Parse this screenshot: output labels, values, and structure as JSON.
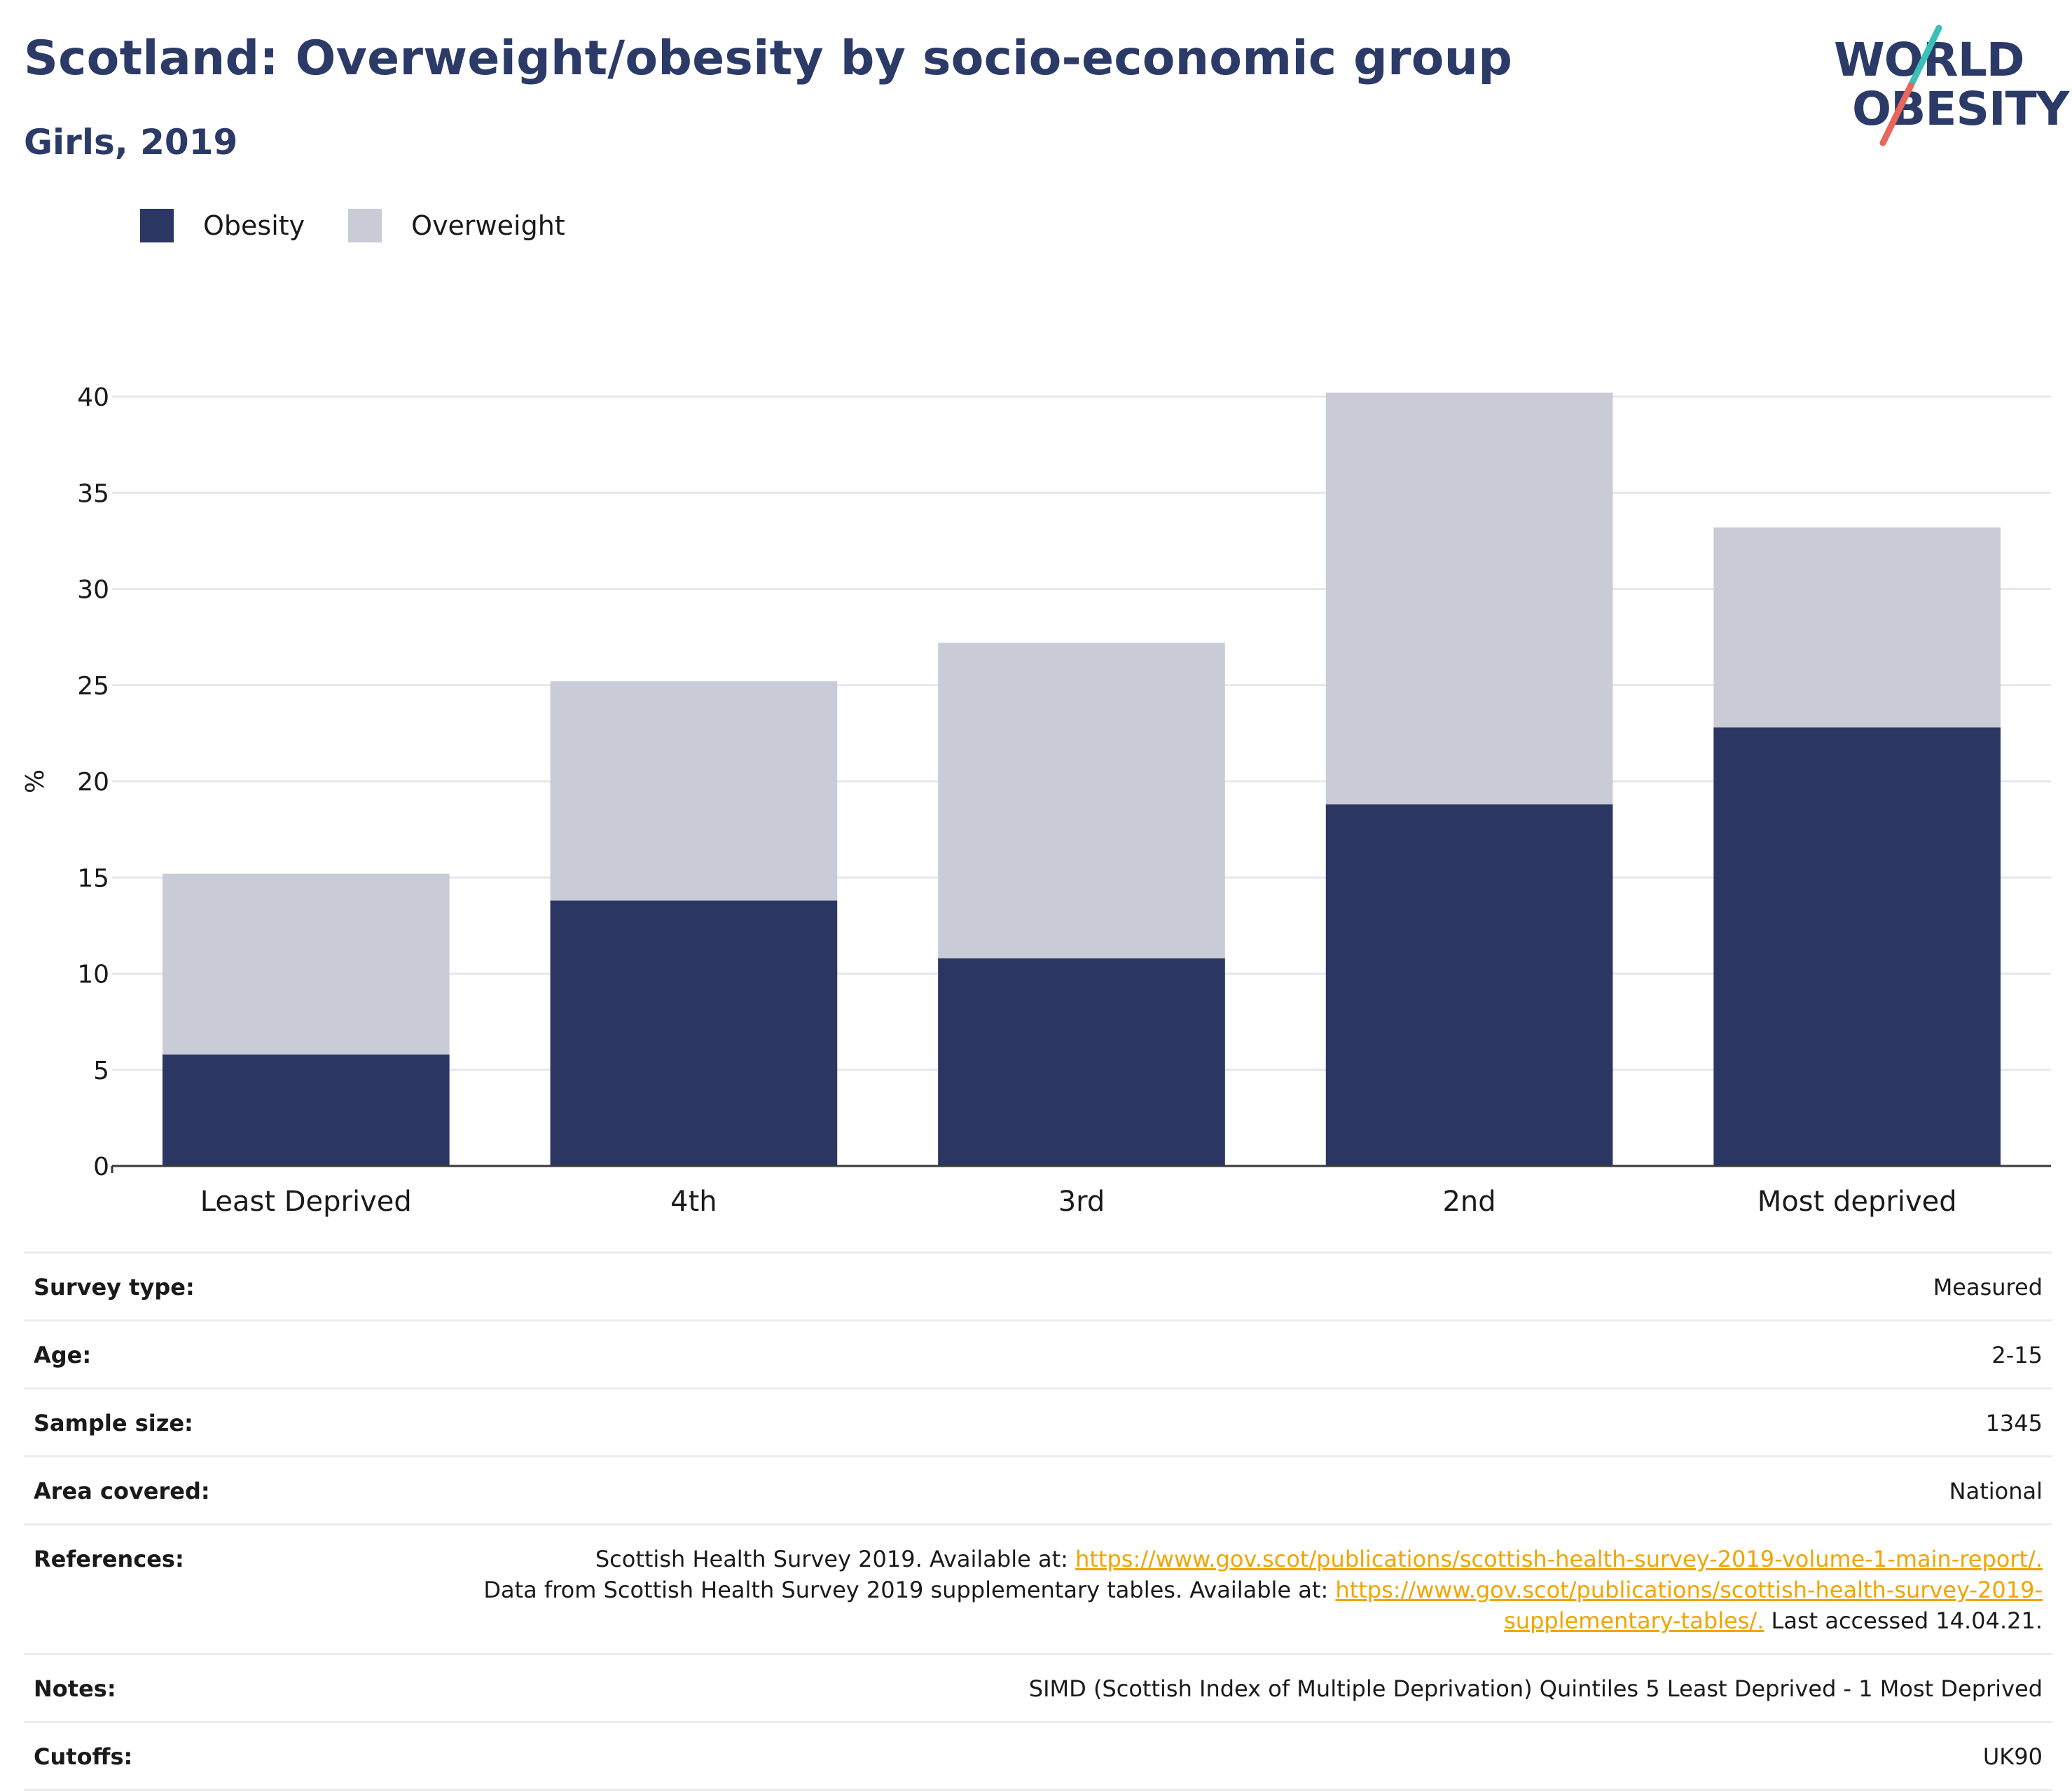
{
  "header": {
    "title": "Scotland: Overweight/obesity by socio-economic group",
    "subtitle": "Girls, 2019"
  },
  "logo": {
    "line1": "WORLD",
    "line2": "OBESITY"
  },
  "colors": {
    "obesity": "#2b3663",
    "overweight": "#c9cbd7",
    "accent_teal": "#3cbfb6",
    "accent_coral": "#e8665a",
    "link": "#f0a500"
  },
  "chart_data": {
    "type": "bar",
    "stacked": true,
    "categories": [
      "Least Deprived",
      "4th",
      "3rd",
      "2nd",
      "Most deprived"
    ],
    "series": [
      {
        "name": "Obesity",
        "values": [
          5.8,
          13.8,
          10.8,
          18.8,
          22.8
        ]
      },
      {
        "name": "Overweight",
        "values": [
          9.4,
          11.4,
          16.4,
          21.4,
          10.4
        ]
      }
    ],
    "ylabel": "%",
    "ylim": [
      0,
      40
    ],
    "yticks": [
      0,
      5,
      10,
      15,
      20,
      25,
      30,
      35,
      40
    ],
    "grid": true,
    "legend": "top-left"
  },
  "info": {
    "survey_type": {
      "label": "Survey type:",
      "value": "Measured"
    },
    "age": {
      "label": "Age:",
      "value": "2-15"
    },
    "sample_size": {
      "label": "Sample size:",
      "value": "1345"
    },
    "area_covered": {
      "label": "Area covered:",
      "value": "National"
    },
    "references": {
      "label": "References:",
      "part1": "Scottish Health Survey 2019. Available at: ",
      "link1": "https://www.gov.scot/publications/scottish-health-survey-2019-volume-1-main-report/.",
      "part2": "Data from Scottish Health Survey 2019 supplementary tables. Available at: ",
      "link2": "https://www.gov.scot/publications/scottish-health-survey-2019-supplementary-tables/.",
      "part3": " Last accessed 14.04.21."
    },
    "notes": {
      "label": "Notes:",
      "value": "SIMD (Scottish Index of Multiple Deprivation) Quintiles 5 Least Deprived - 1 Most Deprived"
    },
    "cutoffs": {
      "label": "Cutoffs:",
      "value": "UK90"
    }
  }
}
